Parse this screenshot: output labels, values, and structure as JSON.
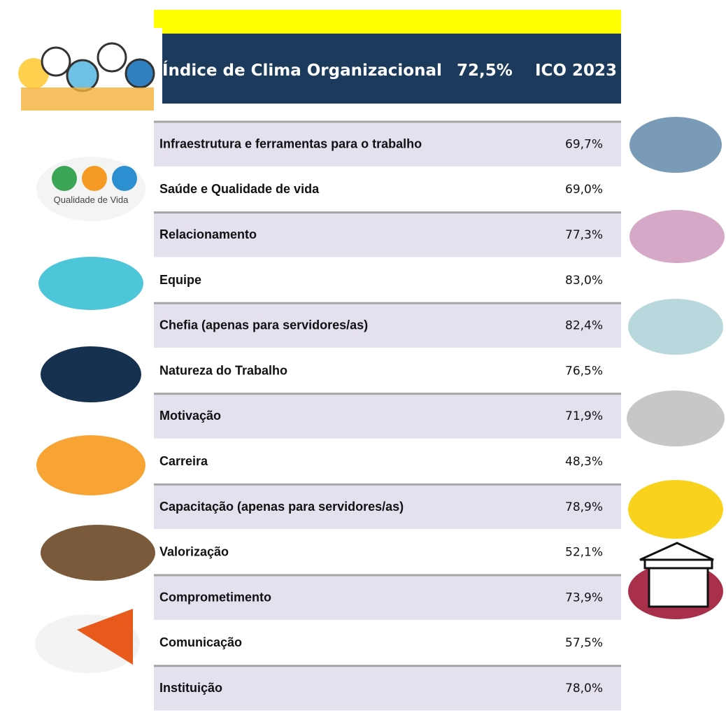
{
  "header": {
    "title": "Índice de Clima Organizacional",
    "score": "72,5%",
    "edition": "ICO 2023"
  },
  "table": {
    "rows": [
      [
        "Infraestrutura e ferramentas para o trabalho",
        "69,7%"
      ],
      [
        "Saúde e Qualidade de vida",
        "69,0%"
      ],
      [
        "Relacionamento",
        "77,3%"
      ],
      [
        "Equipe",
        "83,0%"
      ],
      [
        "Chefia (apenas para servidores/as)",
        "82,4%"
      ],
      [
        "Natureza do Trabalho",
        "76,5%"
      ],
      [
        "Motivação",
        "71,9%"
      ],
      [
        "Carreira",
        "48,3%"
      ],
      [
        "Capacitação (apenas para servidores/as)",
        "78,9%"
      ],
      [
        "Valorização",
        "52,1%"
      ],
      [
        "Comprometimento",
        "73,9%"
      ],
      [
        "Comunicação",
        "57,5%"
      ],
      [
        "Instituição",
        "78,0%"
      ]
    ]
  },
  "icons": {
    "quality_of_life": "Qualidade de Vida"
  }
}
